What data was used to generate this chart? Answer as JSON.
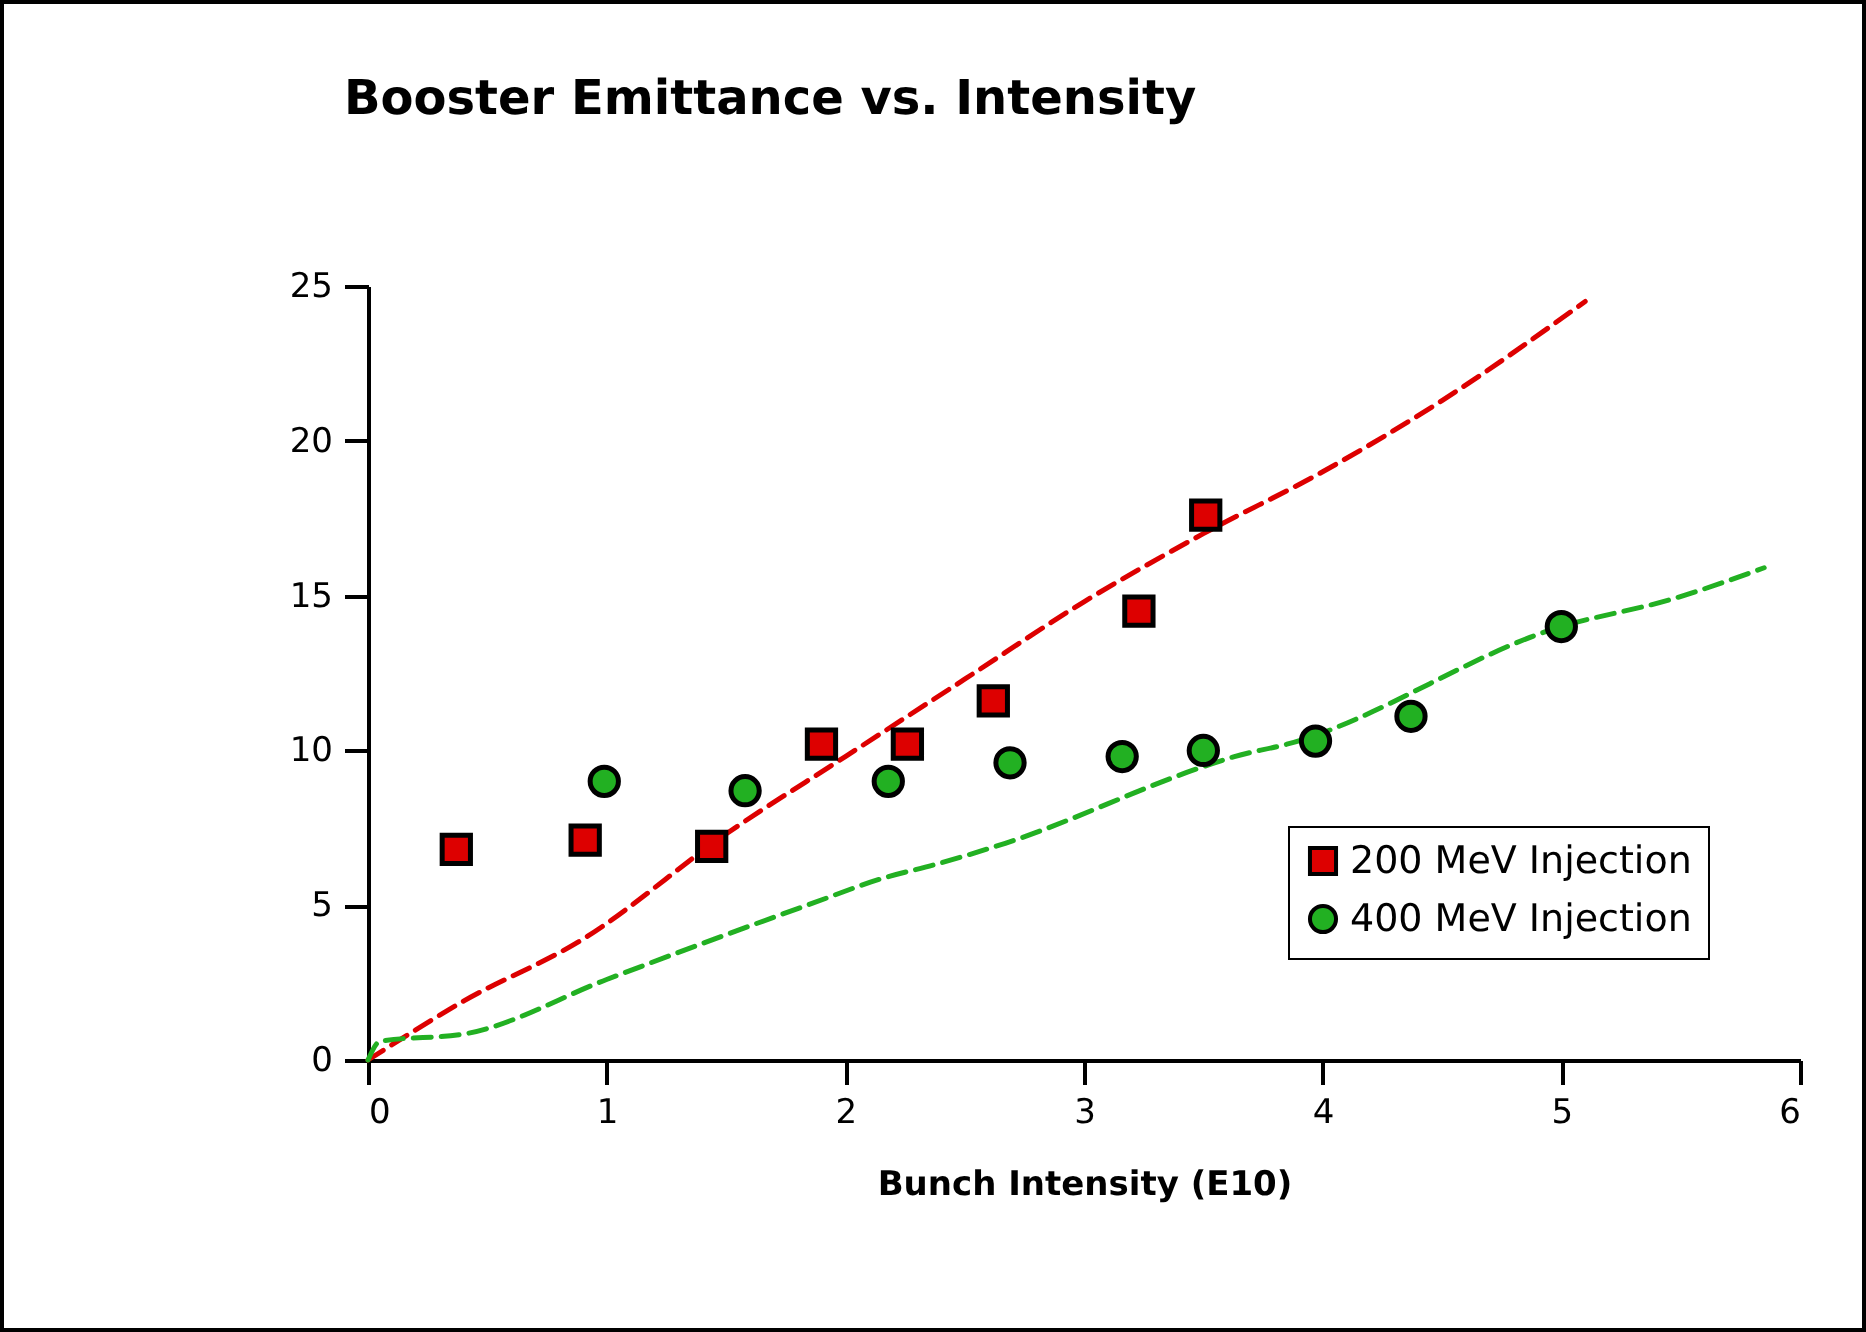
{
  "chart_data": {
    "type": "scatter",
    "title": "Booster Emittance vs. Intensity",
    "xlabel": "Bunch Intensity (E10)",
    "xlim": [
      0,
      6
    ],
    "xticks": [
      0,
      1,
      2,
      3,
      4,
      5,
      6
    ],
    "ylim": [
      0,
      25
    ],
    "yticks": [
      0,
      5,
      10,
      15,
      20,
      25
    ],
    "grid": false,
    "legend": "bottom right",
    "series": [
      {
        "name": "200 MeV Injection",
        "marker": "square",
        "color": "#dd0000",
        "x": [
          0.37,
          0.91,
          1.44,
          1.9,
          2.26,
          2.62,
          3.23,
          3.51
        ],
        "values": [
          6.8,
          7.1,
          6.9,
          10.2,
          10.2,
          11.6,
          14.5,
          17.6
        ]
      },
      {
        "name": "400 MeV Injection",
        "marker": "circle",
        "color": "#22b022",
        "x": [
          0.99,
          1.58,
          2.18,
          2.69,
          3.16,
          3.5,
          3.97,
          4.37,
          5.0
        ],
        "values": [
          9.0,
          8.7,
          9.0,
          9.6,
          9.8,
          10.0,
          10.3,
          11.1,
          14.0
        ]
      },
      {
        "type": "line",
        "line_style": "dashed",
        "color": "#dd0000",
        "x": [
          0,
          0.4,
          0.9,
          1.5,
          2,
          2.5,
          3,
          3.5,
          4,
          4.5,
          5.1
        ],
        "values": [
          0,
          1.9,
          3.9,
          7.3,
          9.8,
          12.3,
          14.8,
          17.0,
          19.0,
          21.3,
          24.5
        ]
      },
      {
        "type": "line",
        "line_style": "dashed",
        "color": "#22b022",
        "x": [
          0,
          0.05,
          0.41,
          1.0,
          1.84,
          2.17,
          2.37,
          2.67,
          3.51,
          3.63,
          3.85,
          5.0,
          5.47,
          5.85
        ],
        "values": [
          0,
          0.6,
          0.85,
          2.6,
          5.0,
          5.9,
          6.3,
          7.0,
          9.5,
          9.8,
          10.2,
          14.0,
          14.9,
          15.9
        ]
      }
    ]
  }
}
